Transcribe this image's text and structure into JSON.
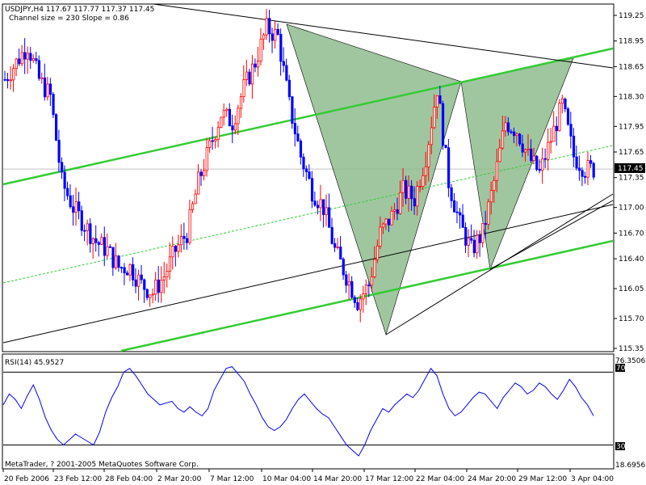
{
  "header": {
    "symbol_info": "USDJPY,H4  117.67 117.77 117.37 117.45",
    "channel_info": "Channel size = 230 Slope = 0.86"
  },
  "price_axis": {
    "labels": [
      "119.25",
      "118.95",
      "118.65",
      "118.30",
      "117.95",
      "117.65",
      "117.35",
      "117.00",
      "116.70",
      "116.40",
      "116.05",
      "115.70",
      "115.35"
    ],
    "current_price": "117.45"
  },
  "rsi_panel": {
    "title": "RSI(14) 45.9527",
    "max_label": "76.3506",
    "level_70": "70",
    "level_30": "30",
    "min_label": "18.6956",
    "copyright": "MetaTrader, ? 2001-2005 MetaQuotes Software Corp."
  },
  "time_axis": {
    "labels": [
      "20 Feb 2006",
      "23 Feb 12:00",
      "28 Feb 04:00",
      "2 Mar 20:00",
      "7 Mar 12:00",
      "10 Mar 04:00",
      "14 Mar 20:00",
      "17 Mar 12:00",
      "22 Mar 04:00",
      "24 Mar 20:00",
      "29 Mar 12:00",
      "3 Apr 04:00"
    ]
  },
  "colors": {
    "bull": "#ff0000",
    "bear": "#0000ff",
    "channel": "#33cc33",
    "pattern_fill": "#8fbc8f",
    "rsi_line": "#0000ff",
    "price_badge": "#000000"
  },
  "chart_data": [
    {
      "type": "candlestick",
      "title": "USDJPY,H4",
      "ylim": [
        115.2,
        119.35
      ],
      "ohlc_path_close": [
        118.5,
        118.7,
        118.9,
        118.5,
        118.3,
        117.3,
        117.0,
        116.8,
        116.6,
        116.5,
        116.3,
        116.3,
        116.1,
        116.0,
        116.2,
        116.5,
        116.7,
        117.3,
        117.7,
        118.1,
        118.0,
        118.4,
        118.7,
        119.1,
        119.0,
        118.2,
        117.6,
        117.2,
        117.0,
        116.5,
        116.2,
        115.9,
        116.1,
        116.7,
        116.9,
        117.2,
        117.1,
        117.6,
        118.4,
        117.3,
        116.8,
        116.5,
        116.7,
        117.3,
        118.0,
        117.9,
        117.6,
        117.4,
        117.8,
        118.2,
        117.6,
        117.45
      ],
      "patterns": {
        "left_triangle_points": [
          "10 Mar 04:00 (119.2)",
          "17 Mar 12:00 (115.5)",
          "22 Mar 04:00 (118.35)"
        ],
        "right_triangle_points": [
          "22 Mar 04:00 (118.35)",
          "24 Mar 20:00 (116.4)",
          "3 Apr 04:00 (118.7)"
        ]
      }
    },
    {
      "type": "line",
      "title": "RSI(14)",
      "ylim": [
        18.6956,
        76.3506
      ],
      "levels": [
        70,
        30
      ],
      "series": [
        {
          "name": "RSI(14)",
          "values": [
            52,
            58,
            55,
            50,
            57,
            63,
            55,
            45,
            38,
            33,
            30,
            33,
            36,
            34,
            32,
            30,
            37,
            48,
            56,
            62,
            70,
            72,
            68,
            63,
            58,
            55,
            52,
            53,
            54,
            50,
            48,
            51,
            48,
            46,
            50,
            60,
            66,
            72,
            73,
            69,
            65,
            58,
            52,
            45,
            40,
            38,
            40,
            44,
            50,
            55,
            58,
            54,
            50,
            47,
            45,
            40,
            35,
            30,
            27,
            24,
            30,
            38,
            44,
            50,
            48,
            52,
            55,
            58,
            56,
            60,
            66,
            72,
            68,
            58,
            50,
            46,
            48,
            52,
            56,
            59,
            58,
            54,
            50,
            56,
            60,
            64,
            62,
            58,
            60,
            64,
            62,
            58,
            55,
            60,
            66,
            62,
            56,
            52,
            46
          ]
        }
      ]
    }
  ]
}
